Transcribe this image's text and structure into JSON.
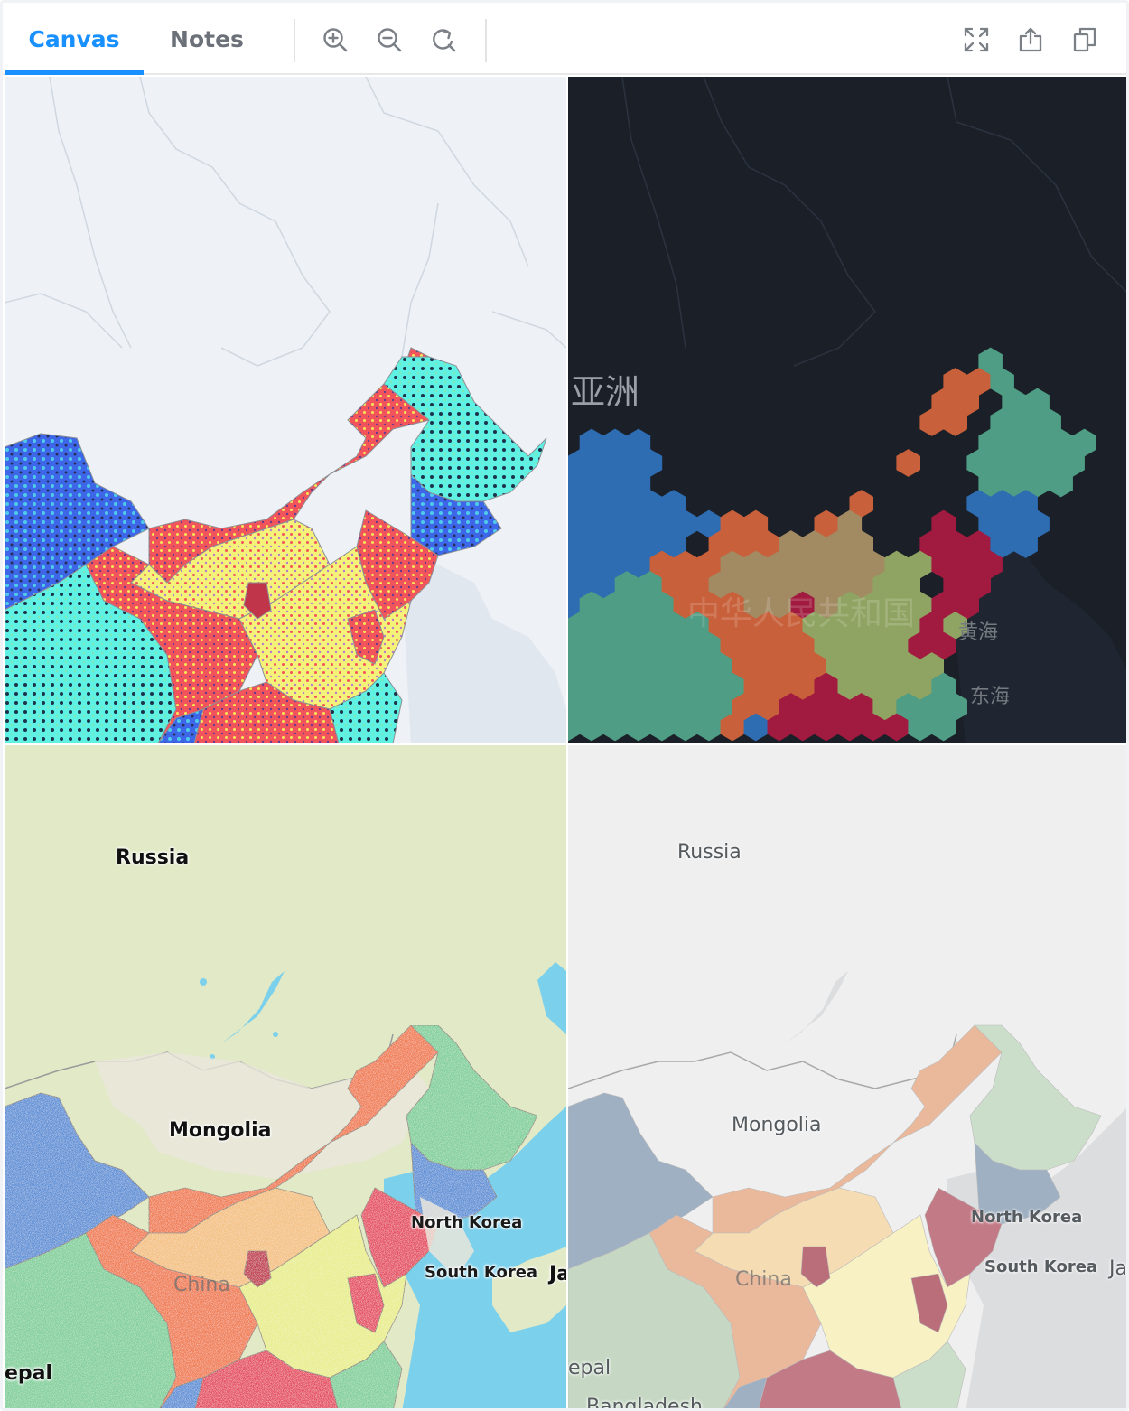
{
  "toolbar": {
    "tabs": [
      {
        "label": "Canvas",
        "active": true
      },
      {
        "label": "Notes",
        "active": false
      }
    ],
    "actions": [
      "zoom-in-icon",
      "zoom-out-icon",
      "refresh-icon"
    ],
    "right_actions": [
      "fullscreen-icon",
      "share-icon",
      "copy-icon"
    ],
    "accent_color": "#1890ff"
  },
  "maps": {
    "top_left": {
      "style": "light",
      "fill": "hexagon-dot-pattern"
    },
    "top_right": {
      "style": "dark",
      "fill": "hexagon",
      "labels": {
        "asia": "亚洲",
        "china": "中华人民共和国",
        "yellow_sea": "黄海",
        "east_sea": "东海"
      }
    },
    "bottom_left": {
      "style": "streets",
      "fill": "noise-texture",
      "labels": {
        "russia": "Russia",
        "mongolia": "Mongolia",
        "north_korea": "North Korea",
        "south_korea": "South Korea",
        "china": "China",
        "nepal": "epal",
        "japan": "Ja"
      }
    },
    "bottom_right": {
      "style": "light-gray",
      "fill": "solid-muted",
      "labels": {
        "russia": "Russia",
        "mongolia": "Mongolia",
        "north_korea": "North Korea",
        "south_korea": "South Korea",
        "china": "China",
        "nepal": "epal",
        "japan": "Ja",
        "bangladesh": "Bangladesh"
      }
    }
  },
  "palette": {
    "blue": "#2f6db3",
    "green": "#4f9d84",
    "orange": "#c8613b",
    "tan": "#a28a63",
    "olive": "#8fa462",
    "crimson": "#a11b40"
  }
}
